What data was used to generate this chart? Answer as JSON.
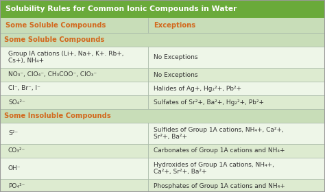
{
  "title": "Solubility Rules for Common Ionic Compounds in Water",
  "title_bg": "#6aaa3a",
  "title_color": "#ffffff",
  "header_color": "#d2691e",
  "col_hdr_bg": "#c8ddb8",
  "section_hdr_bg": "#c8ddb8",
  "row_bg_even": "#eef6e8",
  "row_bg_odd": "#ddebd0",
  "outer_bg": "#ddebd0",
  "col_split": 0.455,
  "title_fontsize": 7.8,
  "header_fontsize": 7.2,
  "row_fontsize": 6.5,
  "rows": [
    {
      "left": "Group IA cations (Li+, Na+, K+. Rb+,\nCs+), NH₄+",
      "right": "No Exceptions",
      "section": "soluble",
      "tall": true
    },
    {
      "left": "NO₃⁻, ClO₄⁻, CH₃COO⁻, ClO₃⁻",
      "right": "No Exceptions",
      "section": "soluble",
      "tall": false
    },
    {
      "left": "Cl⁻, Br⁻, I⁻",
      "right": "Halides of Ag+, Hg₂²+, Pb²+",
      "section": "soluble",
      "tall": false
    },
    {
      "left": "SO₄²⁻",
      "right": "Sulfates of Sr²+, Ba²+, Hg₂²+, Pb²+",
      "section": "soluble",
      "tall": false
    },
    {
      "left": "S²⁻",
      "right": "Sulfides of Group 1A cations, NH₄+, Ca²+,\nSr²+, Ba²+",
      "section": "insoluble",
      "tall": true
    },
    {
      "left": "CO₃²⁻",
      "right": "Carbonates of Group 1A cations and NH₄+",
      "section": "insoluble",
      "tall": false
    },
    {
      "left": "OH⁻",
      "right": "Hydroxides of Group 1A cations, NH₄+,\nCa²+, Sr²+, Ba²+",
      "section": "insoluble",
      "tall": true
    },
    {
      "left": "PO₄³⁻",
      "right": "Phosphates of Group 1A cations and NH₄+",
      "section": "insoluble",
      "tall": false
    }
  ]
}
